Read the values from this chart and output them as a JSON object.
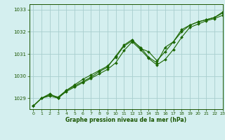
{
  "background_color": "#d4efef",
  "grid_color": "#a8cece",
  "line_color": "#1a6600",
  "text_color": "#1a5500",
  "xlabel": "Graphe pression niveau de la mer (hPa)",
  "xlim": [
    -0.5,
    23
  ],
  "ylim": [
    1028.5,
    1033.25
  ],
  "yticks": [
    1029,
    1030,
    1031,
    1032,
    1033
  ],
  "xticks": [
    0,
    1,
    2,
    3,
    4,
    5,
    6,
    7,
    8,
    9,
    10,
    11,
    12,
    13,
    14,
    15,
    16,
    17,
    18,
    19,
    20,
    21,
    22,
    23
  ],
  "series": [
    [
      1028.65,
      1029.0,
      1029.1,
      1029.0,
      1029.3,
      1029.5,
      1029.7,
      1029.9,
      1030.1,
      1030.3,
      1030.6,
      1031.15,
      1031.55,
      1031.2,
      1030.8,
      1030.5,
      1030.75,
      1031.2,
      1031.75,
      1032.2,
      1032.35,
      1032.5,
      1032.6,
      1032.75
    ],
    [
      1028.65,
      1029.0,
      1029.2,
      1029.0,
      1029.35,
      1029.6,
      1029.85,
      1030.05,
      1030.25,
      1030.45,
      1030.85,
      1031.35,
      1031.6,
      1031.3,
      1030.85,
      1030.6,
      1031.3,
      1031.55,
      1032.0,
      1032.3,
      1032.45,
      1032.55,
      1032.65,
      1032.85
    ],
    [
      1028.65,
      1029.0,
      1029.15,
      1029.05,
      1029.35,
      1029.55,
      1029.75,
      1029.95,
      1030.2,
      1030.4,
      1030.9,
      1031.4,
      1031.65,
      1031.25,
      1031.1,
      1030.7,
      1031.1,
      1031.55,
      1032.1,
      1032.3,
      1032.45,
      1032.55,
      1032.65,
      1032.9
    ]
  ]
}
